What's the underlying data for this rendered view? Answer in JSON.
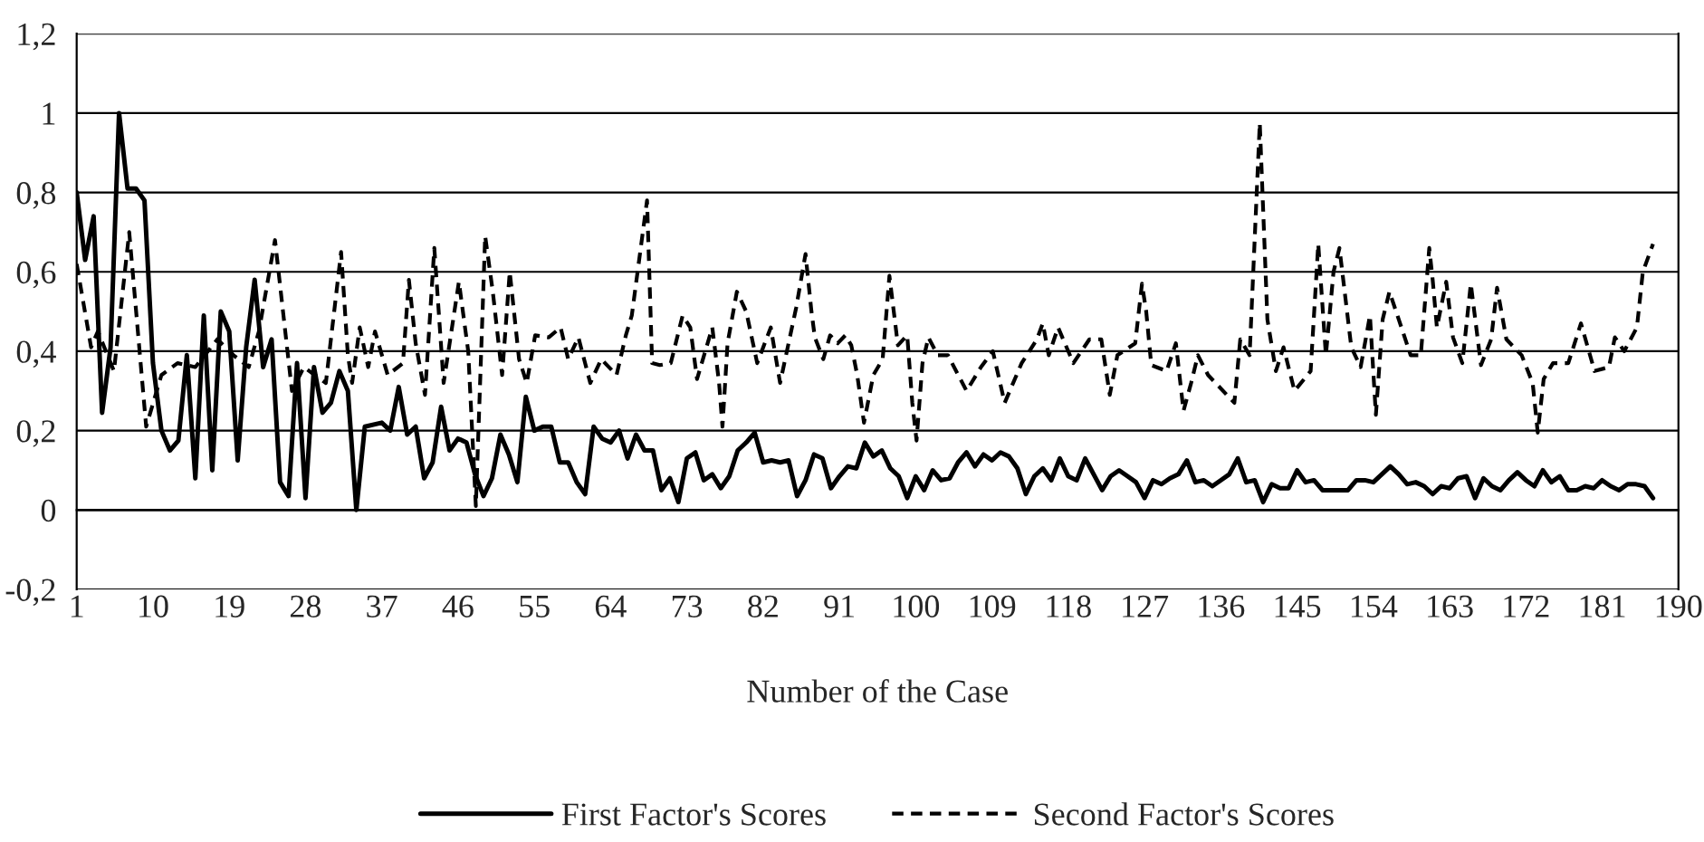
{
  "chart_data": {
    "type": "line",
    "xlabel": "Number of the Case",
    "xlim": [
      1,
      190
    ],
    "xticks": [
      1,
      10,
      19,
      28,
      37,
      46,
      55,
      64,
      73,
      82,
      91,
      100,
      109,
      118,
      127,
      136,
      145,
      154,
      163,
      172,
      181,
      190
    ],
    "ylim": [
      -0.2,
      1.2
    ],
    "yticks": [
      {
        "value": -0.2,
        "label": "-0,2"
      },
      0,
      {
        "value": 0.2,
        "label": "0,2"
      },
      {
        "value": 0.4,
        "label": "0,4"
      },
      {
        "value": 0.6,
        "label": "0,6"
      },
      {
        "value": 0.8,
        "label": "0,8"
      },
      1,
      {
        "value": 1.2,
        "label": "1,2"
      }
    ],
    "grid": "y",
    "legend": "bottom",
    "series": [
      {
        "name": "First Factor's Scores",
        "color": "#000000",
        "line_style": "solid",
        "x": [
          1,
          2,
          3,
          4,
          5,
          6,
          7,
          8,
          9,
          10,
          11,
          12,
          13,
          14,
          15,
          16,
          17,
          18,
          19,
          20,
          21,
          22,
          23,
          24,
          25,
          26,
          27,
          28,
          29,
          30,
          31,
          32,
          33,
          34,
          35,
          37,
          38,
          39,
          40,
          41,
          42,
          43,
          44,
          45,
          46,
          47,
          48,
          49,
          50,
          51,
          52,
          53,
          54,
          55,
          56,
          57,
          58,
          59,
          60,
          61,
          62,
          63,
          64,
          65,
          66,
          67,
          68,
          69,
          70,
          71,
          72,
          73,
          74,
          75,
          76,
          77,
          78,
          79,
          80,
          81,
          82,
          83,
          84,
          85,
          86,
          87,
          88,
          89,
          90,
          91,
          92,
          93,
          94,
          95,
          96,
          97,
          98,
          99,
          100,
          101,
          102,
          103,
          104,
          105,
          106,
          107,
          108,
          109,
          110,
          111,
          112,
          113,
          114,
          115,
          116,
          117,
          118,
          119,
          120,
          121,
          122,
          123,
          124,
          125,
          126,
          127,
          128,
          129,
          130,
          131,
          132,
          133,
          134,
          135,
          136,
          137,
          138,
          139,
          140,
          141,
          142,
          143,
          144,
          145,
          146,
          147,
          148,
          149,
          150,
          151,
          152,
          153,
          154,
          155,
          156,
          157,
          158,
          159,
          160,
          161,
          162,
          163,
          164,
          165,
          166,
          167,
          168,
          169,
          170,
          171,
          172,
          173,
          174,
          175,
          176,
          177,
          178,
          179,
          180,
          181,
          182,
          183,
          184,
          185,
          186,
          187
        ],
        "values": [
          0.8,
          0.63,
          0.74,
          0.245,
          0.41,
          1.0,
          0.81,
          0.81,
          0.78,
          0.37,
          0.2,
          0.15,
          0.175,
          0.39,
          0.08,
          0.49,
          0.1,
          0.5,
          0.45,
          0.125,
          0.41,
          0.58,
          0.36,
          0.43,
          0.07,
          0.035,
          0.37,
          0.03,
          0.36,
          0.245,
          0.27,
          0.35,
          0.3,
          0.0,
          0.21,
          0.22,
          0.2,
          0.31,
          0.19,
          0.21,
          0.08,
          0.12,
          0.26,
          0.15,
          0.18,
          0.17,
          0.09,
          0.035,
          0.08,
          0.19,
          0.14,
          0.07,
          0.285,
          0.2,
          0.21,
          0.21,
          0.12,
          0.12,
          0.07,
          0.04,
          0.21,
          0.18,
          0.17,
          0.2,
          0.13,
          0.19,
          0.15,
          0.15,
          0.05,
          0.08,
          0.02,
          0.13,
          0.145,
          0.075,
          0.09,
          0.055,
          0.085,
          0.15,
          0.17,
          0.195,
          0.12,
          0.125,
          0.12,
          0.125,
          0.035,
          0.075,
          0.14,
          0.13,
          0.055,
          0.085,
          0.11,
          0.105,
          0.17,
          0.135,
          0.15,
          0.105,
          0.085,
          0.03,
          0.085,
          0.05,
          0.1,
          0.075,
          0.08,
          0.12,
          0.145,
          0.11,
          0.14,
          0.125,
          0.145,
          0.135,
          0.105,
          0.04,
          0.085,
          0.105,
          0.075,
          0.13,
          0.085,
          0.075,
          0.13,
          0.09,
          0.05,
          0.085,
          0.1,
          0.085,
          0.07,
          0.03,
          0.075,
          0.065,
          0.08,
          0.09,
          0.125,
          0.07,
          0.075,
          0.06,
          0.075,
          0.09,
          0.13,
          0.07,
          0.075,
          0.02,
          0.065,
          0.055,
          0.055,
          0.1,
          0.07,
          0.075,
          0.05,
          0.05,
          0.05,
          0.05,
          0.075,
          0.075,
          0.07,
          0.09,
          0.11,
          0.09,
          0.065,
          0.07,
          0.06,
          0.04,
          0.06,
          0.055,
          0.08,
          0.085,
          0.03,
          0.08,
          0.06,
          0.05,
          0.075,
          0.095,
          0.075,
          0.06,
          0.1,
          0.07,
          0.085,
          0.05,
          0.05,
          0.06,
          0.055,
          0.075,
          0.06,
          0.05,
          0.065,
          0.065,
          0.06,
          0.03
        ]
      },
      {
        "name": "Second Factor's Scores",
        "color": "#000000",
        "line_style": "dashed",
        "x": [
          1,
          2.7,
          3.5,
          5.4,
          7.2,
          9.2,
          11,
          12.9,
          15,
          17.6,
          19.5,
          21.3,
          22.5,
          24.4,
          26.4,
          27.8,
          30.4,
          32.2,
          33,
          33.5,
          34.4,
          35.4,
          36.2,
          37.7,
          39.5,
          40.2,
          41,
          42.1,
          43.2,
          44.3,
          46.1,
          47.2,
          48.1,
          49.2,
          50.1,
          51.2,
          52.1,
          53.2,
          54.1,
          55.1,
          56.7,
          58.1,
          59,
          60.2,
          61.6,
          62.9,
          64.7,
          65.8,
          66.5,
          68.3,
          68.9,
          69.8,
          71.1,
          72.5,
          73.4,
          74.2,
          76,
          76.8,
          77.2,
          77.8,
          78.9,
          80,
          81.3,
          82.9,
          84,
          85.9,
          87,
          87.7,
          88.1,
          89.1,
          89.9,
          90.8,
          91.7,
          92.4,
          93.1,
          93.9,
          95,
          96.1,
          96.9,
          97.9,
          99,
          99.6,
          100.1,
          100.8,
          101.5,
          102.6,
          103.8,
          106,
          107.7,
          109.1,
          110.5,
          112.5,
          114.3,
          115,
          115.7,
          116.8,
          118.6,
          120.5,
          121.9,
          122.9,
          123.8,
          125.9,
          126.7,
          127.2,
          127.8,
          129.6,
          130.7,
          131.6,
          132.5,
          133.3,
          134.5,
          137.6,
          138.3,
          139.4,
          140.6,
          141.5,
          142.5,
          143.4,
          144.7,
          146.6,
          147.5,
          148.4,
          149.3,
          150,
          151.4,
          152.5,
          153.6,
          154.3,
          155.1,
          155.9,
          157,
          158.4,
          159.6,
          160.6,
          161,
          161.5,
          162.6,
          163.4,
          164.5,
          165.5,
          166.7,
          167.9,
          168.6,
          169.7,
          171.5,
          172.8,
          173.4,
          174.1,
          175.2,
          177,
          178.5,
          180.1,
          181.8,
          182.5,
          183.6,
          185.1,
          185.8,
          187
        ],
        "values": [
          0.62,
          0.41,
          0.45,
          0.35,
          0.7,
          0.21,
          0.34,
          0.37,
          0.36,
          0.43,
          0.39,
          0.36,
          0.45,
          0.68,
          0.3,
          0.36,
          0.32,
          0.65,
          0.39,
          0.32,
          0.46,
          0.36,
          0.45,
          0.34,
          0.37,
          0.58,
          0.42,
          0.29,
          0.66,
          0.32,
          0.575,
          0.4,
          0.01,
          0.69,
          0.55,
          0.34,
          0.6,
          0.38,
          0.32,
          0.44,
          0.435,
          0.46,
          0.38,
          0.435,
          0.32,
          0.38,
          0.34,
          0.44,
          0.49,
          0.78,
          0.37,
          0.365,
          0.37,
          0.49,
          0.46,
          0.33,
          0.46,
          0.32,
          0.21,
          0.42,
          0.55,
          0.5,
          0.37,
          0.46,
          0.32,
          0.51,
          0.645,
          0.5,
          0.435,
          0.38,
          0.44,
          0.42,
          0.44,
          0.415,
          0.34,
          0.22,
          0.34,
          0.38,
          0.59,
          0.415,
          0.44,
          0.27,
          0.175,
          0.37,
          0.435,
          0.39,
          0.39,
          0.3,
          0.36,
          0.4,
          0.27,
          0.37,
          0.43,
          0.47,
          0.39,
          0.46,
          0.37,
          0.43,
          0.43,
          0.29,
          0.39,
          0.42,
          0.57,
          0.5,
          0.365,
          0.35,
          0.42,
          0.25,
          0.32,
          0.39,
          0.34,
          0.27,
          0.43,
          0.39,
          0.975,
          0.48,
          0.35,
          0.41,
          0.3,
          0.35,
          0.67,
          0.39,
          0.6,
          0.66,
          0.41,
          0.36,
          0.49,
          0.24,
          0.48,
          0.55,
          0.48,
          0.39,
          0.39,
          0.66,
          0.58,
          0.46,
          0.575,
          0.435,
          0.37,
          0.57,
          0.365,
          0.43,
          0.56,
          0.43,
          0.39,
          0.32,
          0.195,
          0.33,
          0.37,
          0.37,
          0.47,
          0.35,
          0.36,
          0.435,
          0.4,
          0.46,
          0.6,
          0.67
        ]
      }
    ]
  }
}
